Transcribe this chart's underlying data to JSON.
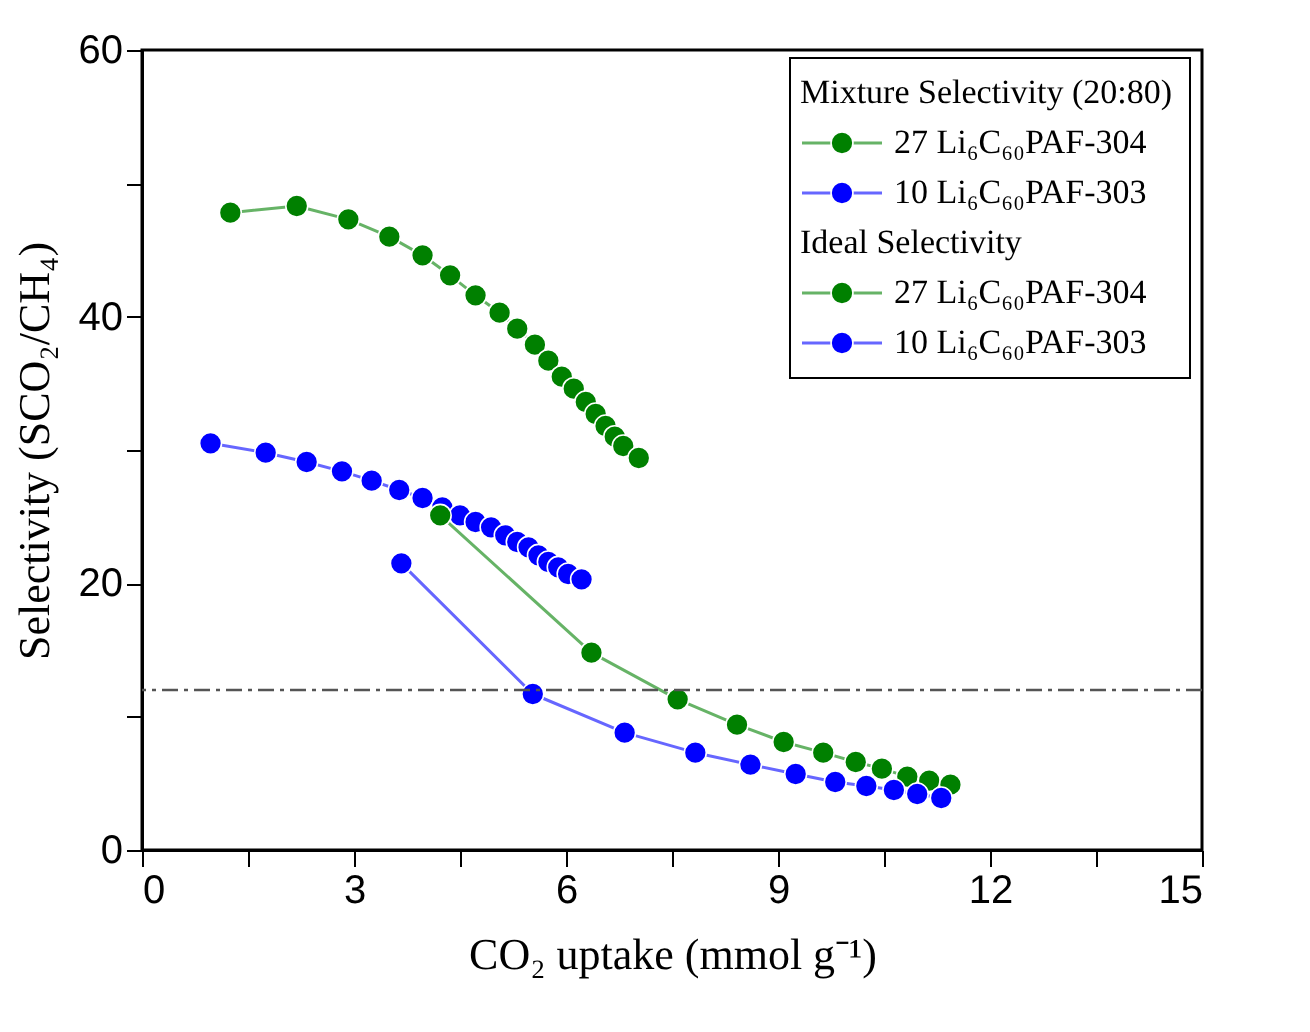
{
  "chart_data": {
    "type": "line",
    "xlabel": "CO₂ uptake (mmol g⁻¹)",
    "ylabel": "Selectivity (SCO₂/CH₄)",
    "xlim": [
      0,
      15
    ],
    "ylim": [
      0,
      60
    ],
    "xticks": [
      0,
      {
        "value": 1.5,
        "label": null
      },
      3,
      {
        "value": 4.5,
        "label": null
      },
      6,
      {
        "value": 7.5,
        "label": null
      },
      9,
      {
        "value": 10.5,
        "label": null
      },
      12,
      {
        "value": 13.5,
        "label": null
      },
      15
    ],
    "yticks": [
      0,
      {
        "value": 10,
        "label": null
      },
      20,
      {
        "value": 30,
        "label": null
      },
      40,
      {
        "value": 50,
        "label": null
      },
      60
    ],
    "grid": false,
    "legend": "top right",
    "marker": "circle",
    "line_style": "solid",
    "annotations": [
      "Mixture Selectivity (20:80)",
      "Ideal Selectivity"
    ],
    "ref_lines": [
      {
        "axis": "y",
        "value": 12,
        "color": "#555555",
        "line_style": "dashed"
      }
    ],
    "series": [
      {
        "name": "27 Li₆C₆₀PAF-304",
        "color": "#008000",
        "x": [
          1.25,
          2.19,
          2.92,
          3.5,
          3.97,
          4.36,
          4.72,
          5.06,
          5.31,
          5.56,
          5.75,
          5.94,
          6.11,
          6.28,
          6.42,
          6.56,
          6.69,
          6.81,
          7.03
        ],
        "values": [
          47.8,
          48.3,
          47.3,
          46.0,
          44.6,
          43.1,
          41.6,
          40.3,
          39.1,
          37.9,
          36.7,
          35.5,
          34.6,
          33.6,
          32.7,
          31.8,
          31.0,
          30.3,
          29.4
        ]
      },
      {
        "name": "10 Li₆C₆₀PAF-303",
        "color": "#0000ff",
        "x": [
          0.97,
          1.75,
          2.33,
          2.83,
          3.25,
          3.64,
          3.97,
          4.25,
          4.5,
          4.72,
          4.94,
          5.14,
          5.31,
          5.47,
          5.61,
          5.75,
          5.89,
          6.03,
          6.22
        ],
        "values": [
          30.5,
          29.8,
          29.1,
          28.4,
          27.7,
          27.0,
          26.4,
          25.7,
          25.1,
          24.6,
          24.2,
          23.6,
          23.1,
          22.7,
          22.1,
          21.6,
          21.2,
          20.7,
          20.3
        ]
      },
      {
        "name": "27 Li₆C₆₀PAF-304",
        "color": "#008000",
        "x": [
          4.22,
          6.36,
          7.58,
          8.42,
          9.08,
          9.64,
          10.1,
          10.47,
          10.83,
          11.14,
          11.44
        ],
        "values": [
          25.1,
          14.8,
          11.3,
          9.4,
          8.1,
          7.3,
          6.6,
          6.1,
          5.5,
          5.2,
          4.9
        ]
      },
      {
        "name": "10 Li₆C₆₀PAF-303",
        "color": "#0000ff",
        "x": [
          3.67,
          5.53,
          6.83,
          7.83,
          8.61,
          9.25,
          9.81,
          10.25,
          10.64,
          10.97,
          11.31
        ],
        "values": [
          21.5,
          11.7,
          8.8,
          7.3,
          6.4,
          5.7,
          5.1,
          4.8,
          4.5,
          4.2,
          3.9
        ]
      }
    ]
  }
}
